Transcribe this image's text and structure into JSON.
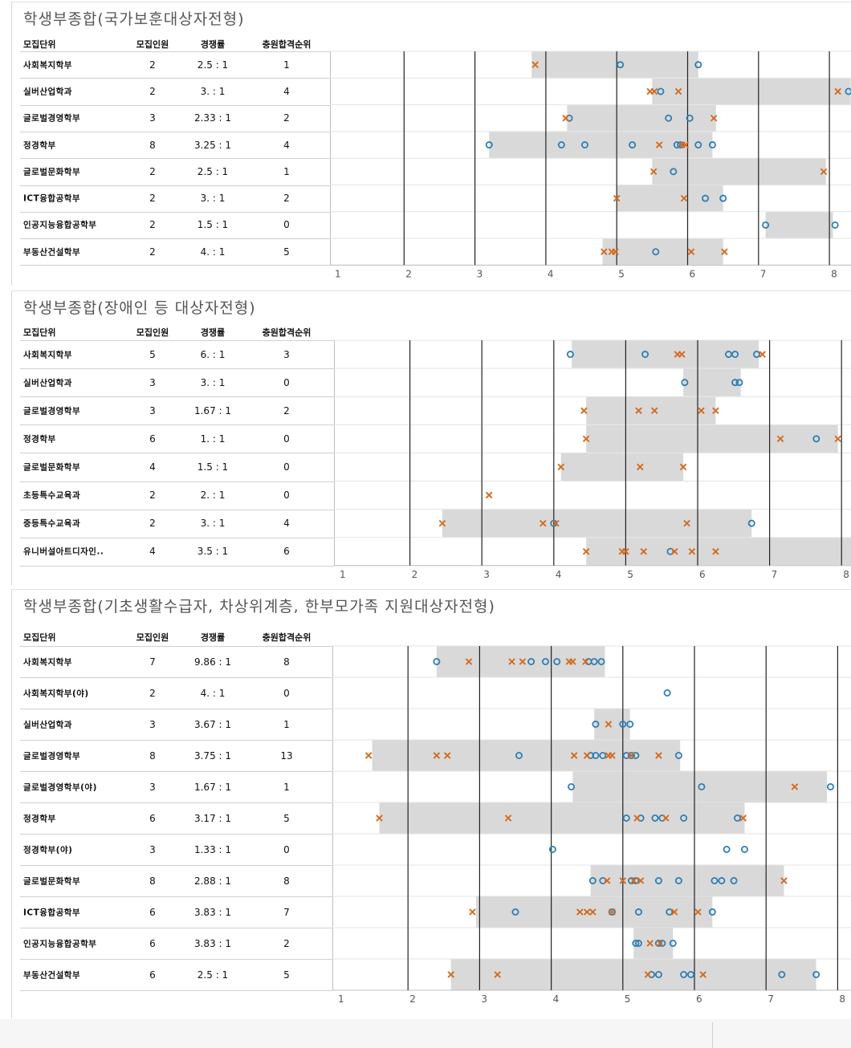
{
  "columns": {
    "unit": "모집단위",
    "count": "모집인원",
    "rate": "경쟁률",
    "rank": "충원합격순위"
  },
  "colors": {
    "bar": "#d9d9d9",
    "circle": "#2e7eb5",
    "cross": "#d46b1f",
    "grid": "#222222"
  },
  "panels": [
    {
      "title": "학생부종합(국가보훈대상자전형)",
      "chart_data": {
        "type": "scatter",
        "xlim": [
          1,
          8.3
        ],
        "xticks": [
          1,
          2,
          3,
          4,
          5,
          6,
          7,
          8
        ],
        "rows": [
          {
            "name": "사회복지학부",
            "count": "2",
            "rate": "2.5 : 1",
            "rank": "1",
            "bar": [
              3.8,
              6.15
            ],
            "circles": [
              5.05,
              6.15
            ],
            "crosses": [
              3.85
            ]
          },
          {
            "name": "실버산업학과",
            "count": "2",
            "rate": "3. : 1",
            "rank": "4",
            "bar": [
              5.5,
              8.3
            ],
            "circles": [
              5.62,
              8.27
            ],
            "crosses": [
              5.47,
              5.53,
              5.87,
              8.12
            ]
          },
          {
            "name": "글로벌경영학부",
            "count": "3",
            "rate": "2.33 : 1",
            "rank": "2",
            "bar": [
              4.3,
              6.4
            ],
            "circles": [
              4.33,
              5.73,
              6.03
            ],
            "crosses": [
              4.28,
              6.37
            ]
          },
          {
            "name": "정경학부",
            "count": "8",
            "rate": "3.25 : 1",
            "rank": "4",
            "bar": [
              3.2,
              6.35
            ],
            "circles": [
              3.2,
              4.22,
              4.55,
              5.22,
              5.85,
              5.9,
              6.15,
              6.35
            ],
            "crosses": [
              5.6,
              5.92,
              5.97
            ]
          },
          {
            "name": "글로벌문화학부",
            "count": "2",
            "rate": "2.5 : 1",
            "rank": "1",
            "bar": [
              5.5,
              7.95
            ],
            "circles": [
              5.8
            ],
            "crosses": [
              5.52,
              7.92
            ]
          },
          {
            "name": "ICT융합공학부",
            "count": "2",
            "rate": "3. : 1",
            "rank": "2",
            "bar": [
              5.0,
              6.5
            ],
            "circles": [
              6.25,
              6.5
            ],
            "crosses": [
              5.0,
              5.95
            ]
          },
          {
            "name": "인공지능융합공학부",
            "count": "2",
            "rate": "1.5 : 1",
            "rank": "0",
            "bar": [
              7.1,
              8.05
            ],
            "circles": [
              7.1,
              8.08
            ],
            "crosses": []
          },
          {
            "name": "부동산건설학부",
            "count": "2",
            "rate": "4. : 1",
            "rank": "5",
            "bar": [
              4.8,
              6.5
            ],
            "circles": [
              5.55
            ],
            "crosses": [
              4.82,
              4.93,
              4.98,
              6.05,
              6.52
            ]
          }
        ]
      }
    },
    {
      "title": "학생부종합(장애인 등 대상자전형)",
      "chart_data": {
        "type": "scatter",
        "xlim": [
          1,
          8.2
        ],
        "xticks": [
          1,
          2,
          3,
          4,
          5,
          6,
          7,
          8
        ],
        "rows": [
          {
            "name": "사회복지학부",
            "count": "5",
            "rate": "6. : 1",
            "rank": "3",
            "bar": [
              4.25,
              6.85
            ],
            "circles": [
              4.23,
              5.27,
              6.43,
              6.52,
              6.82
            ],
            "crosses": [
              5.72,
              5.78,
              6.9
            ]
          },
          {
            "name": "실버산업학과",
            "count": "3",
            "rate": "3. : 1",
            "rank": "0",
            "bar": [
              5.8,
              6.6
            ],
            "circles": [
              5.82,
              6.52,
              6.58
            ],
            "crosses": []
          },
          {
            "name": "글로벌경영학부",
            "count": "3",
            "rate": "1.67 : 1",
            "rank": "2",
            "bar": [
              4.45,
              6.25
            ],
            "circles": [],
            "crosses": [
              4.42,
              5.18,
              5.4,
              6.05,
              6.25
            ]
          },
          {
            "name": "정경학부",
            "count": "6",
            "rate": "1. : 1",
            "rank": "0",
            "bar": [
              4.45,
              7.95
            ],
            "circles": [
              7.65
            ],
            "crosses": [
              4.45,
              7.15,
              7.95
            ]
          },
          {
            "name": "글로벌문화학부",
            "count": "4",
            "rate": "1.5 : 1",
            "rank": "0",
            "bar": [
              4.1,
              5.8
            ],
            "circles": [],
            "crosses": [
              4.1,
              5.2,
              5.8
            ]
          },
          {
            "name": "초등특수교육과",
            "count": "2",
            "rate": "2. : 1",
            "rank": "0",
            "bar": null,
            "circles": [],
            "crosses": [
              3.1
            ]
          },
          {
            "name": "중등특수교육과",
            "count": "2",
            "rate": "3. : 1",
            "rank": "4",
            "bar": [
              2.45,
              6.75
            ],
            "circles": [
              4.0,
              6.75
            ],
            "crosses": [
              2.45,
              3.85,
              4.03,
              5.85
            ]
          },
          {
            "name": "유니버설아트디자인..",
            "count": "4",
            "rate": "3.5 : 1",
            "rank": "6",
            "bar": [
              4.45,
              8.2
            ],
            "circles": [
              5.62
            ],
            "crosses": [
              4.45,
              4.95,
              5.0,
              5.25,
              5.68,
              5.92,
              6.25
            ]
          }
        ]
      }
    },
    {
      "title": "학생부종합(기초생활수급자, 차상위계층, 한부모가족 지원대상자전형)",
      "chart_data": {
        "type": "scatter",
        "xlim": [
          1,
          8.1
        ],
        "xticks": [
          1,
          2,
          3,
          4,
          5,
          6,
          7,
          8
        ],
        "rows": [
          {
            "name": "사회복지학부",
            "count": "7",
            "rate": "9.86 : 1",
            "rank": "8",
            "bar": [
              2.4,
              4.75
            ],
            "circles": [
              2.4,
              3.72,
              3.92,
              4.08,
              4.52,
              4.6,
              4.7
            ],
            "crosses": [
              2.85,
              3.45,
              3.6,
              4.25,
              4.3,
              4.48
            ]
          },
          {
            "name": "사회복지학부(야)",
            "count": "2",
            "rate": "4. : 1",
            "rank": "0",
            "bar": null,
            "circles": [
              5.62
            ],
            "crosses": []
          },
          {
            "name": "실버산업학과",
            "count": "3",
            "rate": "3.67 : 1",
            "rank": "1",
            "bar": [
              4.6,
              5.1
            ],
            "circles": [
              4.62,
              5.0,
              5.1
            ],
            "crosses": [
              4.8
            ]
          },
          {
            "name": "글로벌경영학부",
            "count": "8",
            "rate": "3.75 : 1",
            "rank": "13",
            "bar": [
              1.5,
              5.8
            ],
            "circles": [
              3.55,
              4.55,
              4.62,
              4.72,
              5.05,
              5.12,
              5.18,
              5.78
            ],
            "crosses": [
              1.45,
              2.4,
              2.55,
              4.32,
              4.5,
              4.8,
              4.85,
              5.12,
              5.5
            ]
          },
          {
            "name": "글로벌경영학부(야)",
            "count": "3",
            "rate": "1.67 : 1",
            "rank": "1",
            "bar": [
              4.3,
              7.85
            ],
            "circles": [
              4.28,
              6.1,
              7.9
            ],
            "crosses": [
              7.4
            ]
          },
          {
            "name": "정경학부",
            "count": "6",
            "rate": "3.17 : 1",
            "rank": "5",
            "bar": [
              1.6,
              6.7
            ],
            "circles": [
              5.05,
              5.25,
              5.45,
              5.55,
              5.85,
              6.6
            ],
            "crosses": [
              1.6,
              3.4,
              5.2,
              5.6,
              6.68
            ]
          },
          {
            "name": "정경학부(야)",
            "count": "3",
            "rate": "1.33 : 1",
            "rank": "0",
            "bar": null,
            "circles": [
              4.02,
              6.45,
              6.7
            ],
            "crosses": []
          },
          {
            "name": "글로벌문화학부",
            "count": "8",
            "rate": "2.88 : 1",
            "rank": "8",
            "bar": [
              4.55,
              7.25
            ],
            "circles": [
              4.58,
              4.72,
              5.12,
              5.18,
              5.5,
              5.78,
              6.28,
              6.38,
              6.55
            ],
            "crosses": [
              4.78,
              5.0,
              5.15,
              5.25,
              7.25
            ]
          },
          {
            "name": "ICT융합공학부",
            "count": "6",
            "rate": "3.83 : 1",
            "rank": "7",
            "bar": [
              2.95,
              6.25
            ],
            "circles": [
              3.5,
              4.85,
              5.22,
              5.65,
              6.25
            ],
            "crosses": [
              2.9,
              4.4,
              4.5,
              4.58,
              4.85,
              5.72,
              6.05
            ]
          },
          {
            "name": "인공지능융합공학부",
            "count": "6",
            "rate": "3.83 : 1",
            "rank": "2",
            "bar": [
              5.15,
              5.7
            ],
            "circles": [
              5.18,
              5.22,
              5.5,
              5.55,
              5.7
            ],
            "crosses": [
              5.38,
              5.52
            ]
          },
          {
            "name": "부동산건설학부",
            "count": "6",
            "rate": "2.5 : 1",
            "rank": "5",
            "bar": [
              2.6,
              7.7
            ],
            "circles": [
              5.4,
              5.5,
              5.85,
              5.95,
              7.22,
              7.7
            ],
            "crosses": [
              2.6,
              3.25,
              5.35,
              6.12
            ]
          }
        ]
      }
    }
  ]
}
